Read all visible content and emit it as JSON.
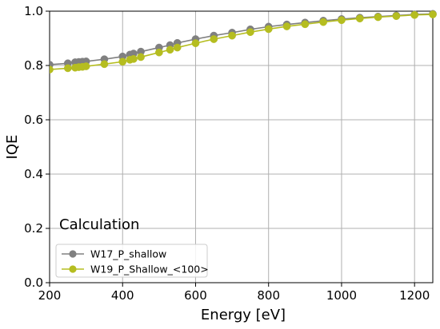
{
  "chart_data": {
    "type": "line",
    "title": "",
    "annotation": "Calculation",
    "xlabel": "Energy [eV]",
    "ylabel": "IQE",
    "xlim": [
      200,
      1250
    ],
    "ylim": [
      0.0,
      1.0
    ],
    "x_ticks": [
      200,
      400,
      600,
      800,
      1000,
      1200
    ],
    "y_ticks": [
      0.0,
      0.2,
      0.4,
      0.6,
      0.8,
      1.0
    ],
    "x_tick_labels": [
      "200",
      "400",
      "600",
      "800",
      "1000",
      "1200"
    ],
    "y_tick_labels": [
      "0.0",
      "0.2",
      "0.4",
      "0.6",
      "0.8",
      "1.0"
    ],
    "grid": true,
    "legend_position": "lower-left",
    "series": [
      {
        "name": "W17_P_shallow",
        "color": "#808080",
        "x": [
          200,
          250,
          270,
          280,
          290,
          300,
          350,
          400,
          420,
          430,
          450,
          500,
          530,
          550,
          600,
          650,
          700,
          750,
          800,
          850,
          900,
          950,
          1000,
          1050,
          1100,
          1150,
          1200,
          1250
        ],
        "y": [
          0.803,
          0.808,
          0.812,
          0.813,
          0.814,
          0.815,
          0.823,
          0.833,
          0.84,
          0.844,
          0.851,
          0.866,
          0.875,
          0.883,
          0.897,
          0.91,
          0.921,
          0.933,
          0.943,
          0.951,
          0.958,
          0.965,
          0.971,
          0.976,
          0.98,
          0.984,
          0.988,
          0.99
        ]
      },
      {
        "name": "W19_P_Shallow_<100>",
        "color": "#b5bd20",
        "x": [
          200,
          250,
          270,
          280,
          290,
          300,
          350,
          400,
          420,
          430,
          450,
          500,
          530,
          550,
          600,
          650,
          700,
          750,
          800,
          850,
          900,
          950,
          1000,
          1050,
          1100,
          1150,
          1200,
          1250
        ],
        "y": [
          0.785,
          0.79,
          0.792,
          0.794,
          0.795,
          0.797,
          0.805,
          0.814,
          0.821,
          0.824,
          0.831,
          0.848,
          0.858,
          0.866,
          0.882,
          0.897,
          0.91,
          0.923,
          0.934,
          0.944,
          0.952,
          0.96,
          0.967,
          0.973,
          0.978,
          0.982,
          0.986,
          0.988
        ]
      }
    ]
  }
}
